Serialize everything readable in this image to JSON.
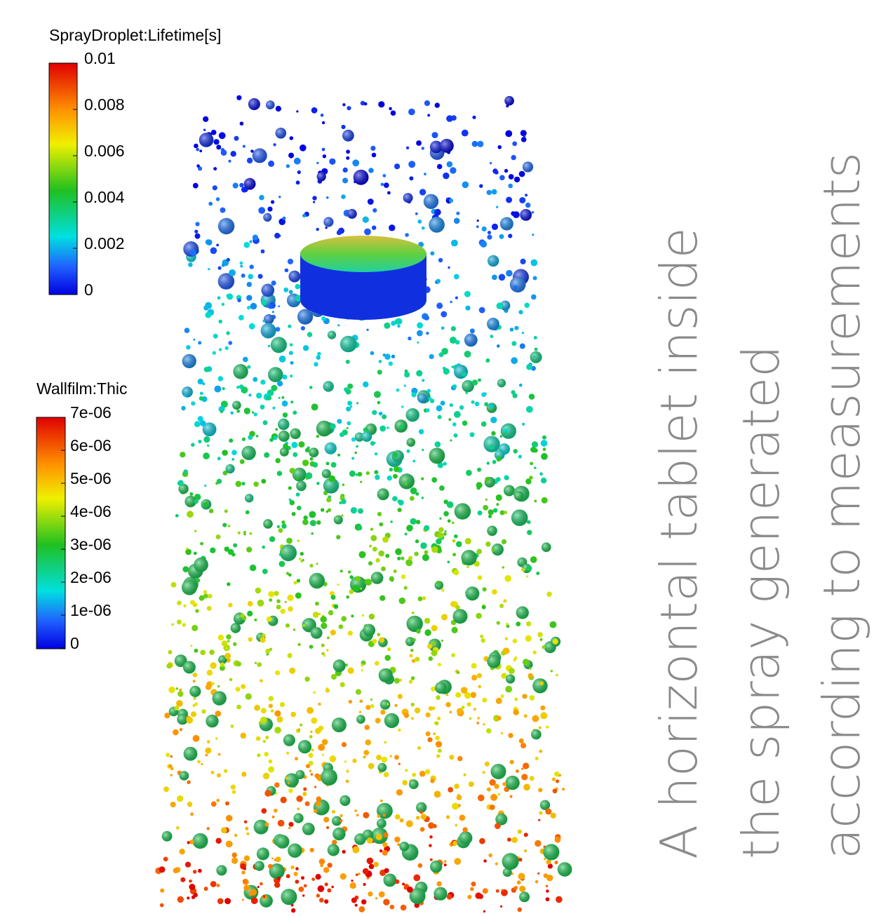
{
  "legends": [
    {
      "title": "SprayDroplet:Lifetime[s]",
      "labels": [
        "0.01",
        "0.008",
        "0.006",
        "0.004",
        "0.002",
        "0"
      ]
    },
    {
      "title": "Wallfilm:Thic",
      "labels": [
        "7e-06",
        "6e-06",
        "5e-06",
        "4e-06",
        "3e-06",
        "2e-06",
        "1e-06",
        "0"
      ]
    }
  ],
  "caption": [
    "A horizontal tablet inside",
    "the spray generated",
    "according to measurements"
  ]
}
